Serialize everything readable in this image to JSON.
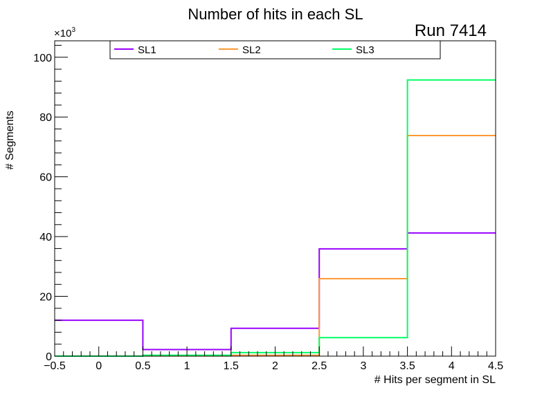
{
  "chart_data": {
    "type": "step-histogram",
    "title": "Number of hits in each SL",
    "annotation": "Run 7414",
    "xlabel": "# Hits per segment in SL",
    "ylabel": "# Segments",
    "y_multiplier_label": "×10",
    "y_multiplier_exp": "3",
    "xlim": [
      -0.5,
      4.5
    ],
    "ylim": [
      0,
      105.5
    ],
    "x_ticks": [
      "−0.5",
      "0",
      "0.5",
      "1",
      "1.5",
      "2",
      "2.5",
      "3",
      "3.5",
      "4",
      "4.5"
    ],
    "x_tick_values": [
      -0.5,
      0,
      0.5,
      1,
      1.5,
      2,
      2.5,
      3,
      3.5,
      4,
      4.5
    ],
    "y_ticks": [
      "0",
      "20",
      "40",
      "60",
      "80",
      "100"
    ],
    "y_tick_values": [
      0,
      20,
      40,
      60,
      80,
      100
    ],
    "bin_edges": [
      -0.5,
      0.5,
      1.5,
      2.5,
      3.5,
      4.5
    ],
    "legend_placement": "top",
    "series": [
      {
        "name": "SL1",
        "color": "#9900ff",
        "values": [
          12.0,
          2.2,
          9.3,
          35.9,
          41.2
        ]
      },
      {
        "name": "SL2",
        "color": "#ff9933",
        "values": [
          0.0,
          0.1,
          0.3,
          25.9,
          73.8
        ]
      },
      {
        "name": "SL3",
        "color": "#00ff66",
        "values": [
          0.0,
          0.3,
          1.2,
          6.2,
          92.4
        ]
      }
    ]
  }
}
